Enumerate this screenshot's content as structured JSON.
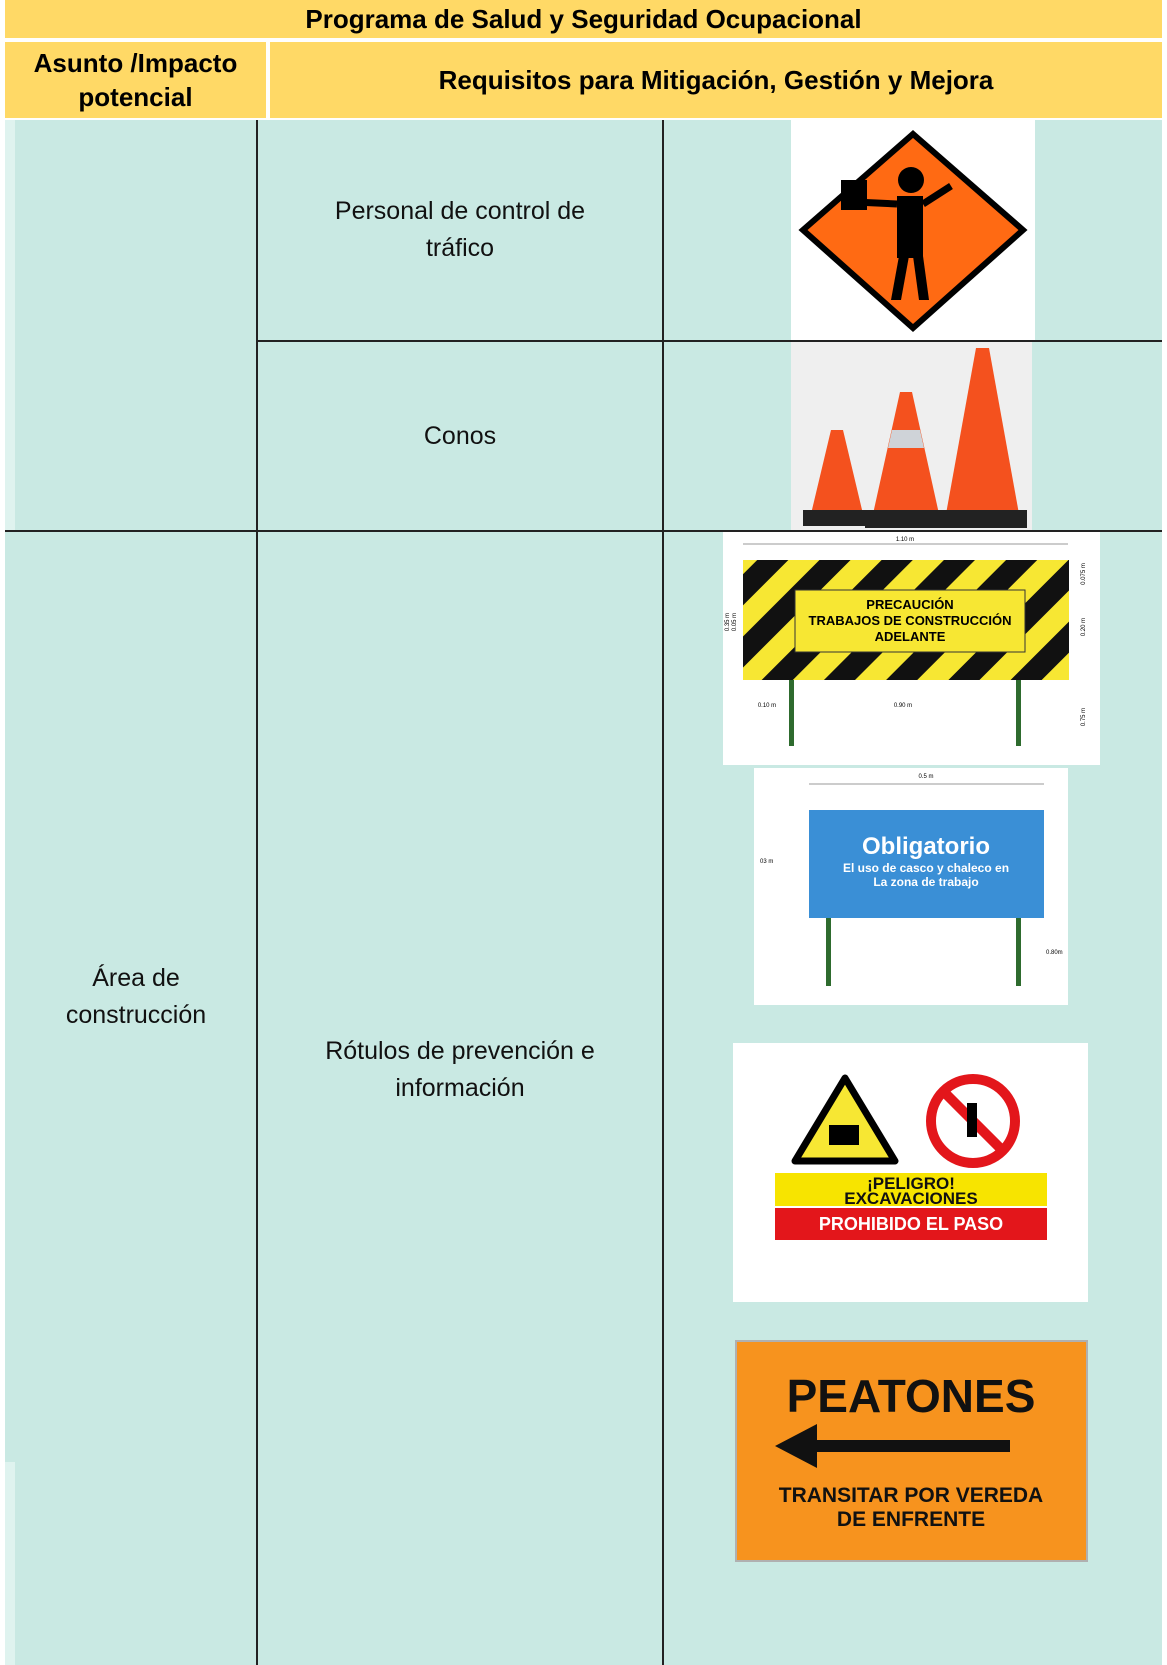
{
  "table": {
    "title": "Programa de Salud y Seguridad Ocupacional",
    "headers": [
      "Asunto /Impacto potencial",
      "Requisitos para Mitigación, Gestión y Mejora"
    ],
    "rows": [
      {
        "requirement": "Personal de control de tráfico"
      },
      {
        "requirement": "Conos"
      },
      {
        "impact": "Área de construcción",
        "requirement": "Rótulos de prevención e información",
        "signs": [
          {
            "lines": [
              "PRECAUCIÓN",
              "TRABAJOS DE CONSTRUCCIÓN",
              "ADELANTE"
            ],
            "dimensions": [
              "1.10 m",
              "0.10 m",
              "0.90 m",
              "0.75 m",
              "0.20 m",
              "0.075 m",
              "0.35 m",
              "0.05 m"
            ]
          },
          {
            "title": "Obligatorio",
            "lines": [
              "El uso de casco y chaleco  en",
              "La zona de trabajo"
            ],
            "dimensions": [
              "0.5 m",
              "03 m",
              "0.80m"
            ]
          },
          {
            "lines": [
              "¡PELIGRO!",
              "EXCAVACIONES",
              "PROHIBIDO EL PASO"
            ]
          },
          {
            "title": "PEATONES",
            "lines": [
              "TRANSITAR POR VEREDA",
              "DE ENFRENTE"
            ]
          }
        ]
      }
    ]
  }
}
